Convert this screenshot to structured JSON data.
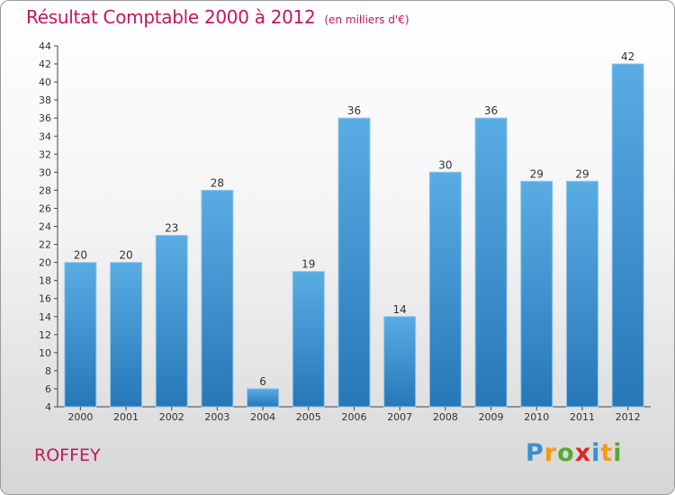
{
  "chart_data": {
    "type": "bar",
    "title": "Résultat Comptable 2000 à 2012",
    "subtitle": "(en milliers d'€)",
    "categories": [
      "2000",
      "2001",
      "2002",
      "2003",
      "2004",
      "2005",
      "2006",
      "2007",
      "2008",
      "2009",
      "2010",
      "2011",
      "2012"
    ],
    "values": [
      20,
      20,
      23,
      28,
      6,
      19,
      36,
      14,
      30,
      36,
      29,
      29,
      42
    ],
    "ylim": [
      4,
      44
    ],
    "yticks": [
      4,
      6,
      8,
      10,
      12,
      14,
      16,
      18,
      20,
      22,
      24,
      26,
      28,
      30,
      32,
      34,
      36,
      38,
      40,
      42,
      44
    ],
    "xlabel": "",
    "ylabel": "",
    "grid": false,
    "bar_color_top": "#5aace4",
    "bar_color_bottom": "#2777b7"
  },
  "commune": "ROFFEY",
  "logo": {
    "letters": [
      "P",
      "r",
      "o",
      "x",
      "i",
      "t",
      "i"
    ],
    "colors": [
      "#3a8fd0",
      "#f39c12",
      "#5aa832",
      "#d9262c",
      "#3a8fd0",
      "#f39c12",
      "#5aa832"
    ]
  }
}
